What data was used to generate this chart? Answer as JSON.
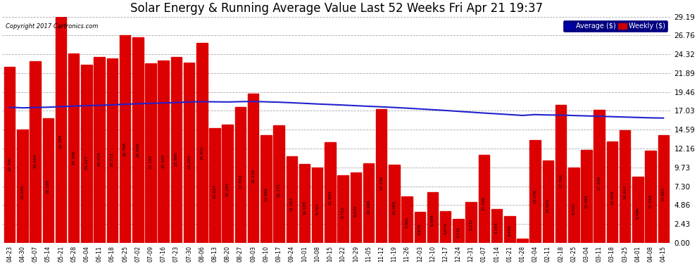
{
  "title": "Solar Energy & Running Average Value Last 52 Weeks Fri Apr 21 19:37",
  "copyright": "Copyright 2017 Cartronics.com",
  "categories": [
    "04-23",
    "04-30",
    "05-07",
    "05-14",
    "05-21",
    "05-28",
    "06-04",
    "06-11",
    "06-18",
    "06-25",
    "07-02",
    "07-09",
    "07-16",
    "07-23",
    "07-30",
    "08-06",
    "08-13",
    "08-20",
    "08-27",
    "09-03",
    "09-10",
    "09-17",
    "09-24",
    "10-01",
    "10-08",
    "10-15",
    "10-22",
    "10-29",
    "11-05",
    "11-12",
    "11-19",
    "11-26",
    "12-03",
    "12-10",
    "12-17",
    "12-24",
    "12-31",
    "01-07",
    "01-14",
    "01-21",
    "01-28",
    "02-04",
    "02-11",
    "02-18",
    "02-25",
    "03-04",
    "03-11",
    "03-18",
    "03-25",
    "04-01",
    "04-08",
    "04-15"
  ],
  "bar_values": [
    22.7,
    14.59,
    23.424,
    16.108,
    29.188,
    24.396,
    23.027,
    24.019,
    23.773,
    26.796,
    26.569,
    23.15,
    23.5,
    23.98,
    23.285,
    25.831,
    14.837,
    15.295,
    17.552,
    19.236,
    13.866,
    15.171,
    11.163,
    10.185,
    9.747,
    12.993,
    8.752,
    9.031,
    10.268,
    17.226,
    10.069,
    5.961,
    3.975,
    6.569,
    4.074,
    3.111,
    5.21,
    11.335,
    4.354,
    3.445,
    0.554,
    13.276,
    10.605,
    17.76,
    9.7,
    11.965,
    17.206,
    13.029,
    14.497,
    8.496,
    11.916,
    13.882
  ],
  "avg_values": [
    17.5,
    17.42,
    17.46,
    17.5,
    17.58,
    17.65,
    17.7,
    17.75,
    17.8,
    17.88,
    17.95,
    18.0,
    18.05,
    18.1,
    18.18,
    18.22,
    18.2,
    18.18,
    18.22,
    18.25,
    18.2,
    18.15,
    18.08,
    18.0,
    17.92,
    17.85,
    17.78,
    17.7,
    17.62,
    17.55,
    17.47,
    17.38,
    17.28,
    17.18,
    17.08,
    16.97,
    16.86,
    16.75,
    16.65,
    16.55,
    16.44,
    16.55,
    16.5,
    16.48,
    16.43,
    16.38,
    16.33,
    16.28,
    16.23,
    16.18,
    16.13,
    16.1
  ],
  "ylim": [
    0,
    29.19
  ],
  "yticks": [
    0.0,
    2.43,
    4.86,
    7.3,
    9.73,
    12.16,
    14.59,
    17.03,
    19.46,
    21.89,
    24.32,
    26.76,
    29.19
  ],
  "bar_color": "#dd0000",
  "line_color": "#2222cc",
  "bg_color": "#ffffff",
  "grid_color": "#aaaaaa",
  "title_fontsize": 12,
  "legend_avg_color": "#0000aa",
  "legend_weekly_color": "#cc0000"
}
